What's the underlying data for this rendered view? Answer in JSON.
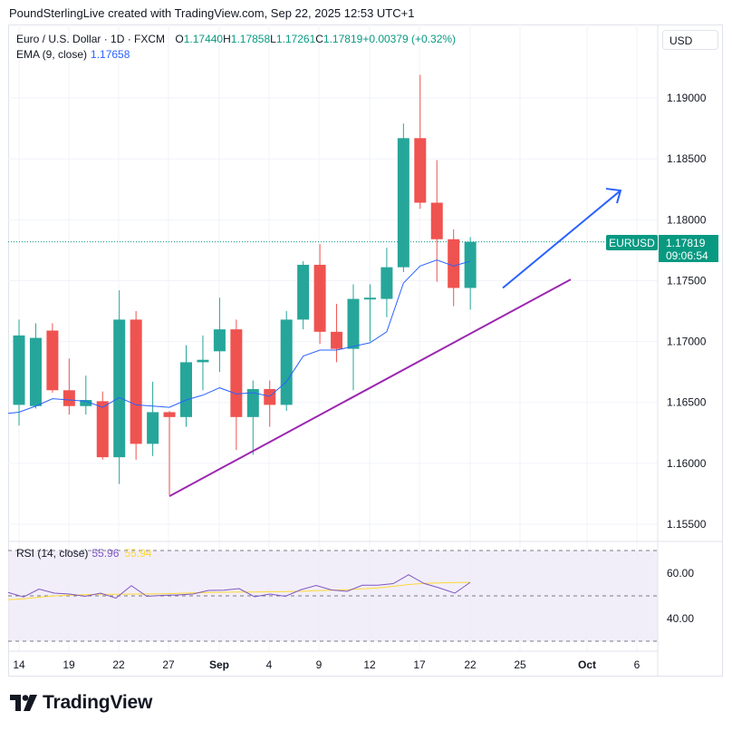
{
  "header": {
    "credit": "PoundSterlingLive created with TradingView.com, Sep 22, 2025 12:53 UTC+1"
  },
  "legend": {
    "symbol": "Euro / U.S. Dollar · 1D · FXCM",
    "o_label": "O",
    "o_value": "1.17440",
    "h_label": "H",
    "h_value": "1.17858",
    "l_label": "L",
    "l_value": "1.17261",
    "c_label": "C",
    "c_value": "1.17819",
    "change": "+0.00379 (+0.32%)",
    "ema_label": "EMA (9, close)",
    "ema_value": "1.17658",
    "rsi_label": "RSI (14, close)",
    "rsi_value": "55.96",
    "rsi_ma_value": "55.94"
  },
  "price_scale": {
    "currency": "USD",
    "ticks": [
      "1.19000",
      "1.18500",
      "1.18000",
      "1.17500",
      "1.17000",
      "1.16500",
      "1.16000",
      "1.15500"
    ],
    "last_symbol": "EURUSD",
    "last_price": "1.17819",
    "countdown": "09:06:54"
  },
  "rsi_scale": {
    "ticks": [
      "60.00",
      "40.00"
    ]
  },
  "time_axis": {
    "labels": [
      "14",
      "19",
      "22",
      "27",
      "Sep",
      "4",
      "9",
      "12",
      "17",
      "22",
      "25",
      "Oct",
      "6"
    ],
    "bold": [
      "Sep",
      "Oct"
    ]
  },
  "colors": {
    "up": "#26a69a",
    "down": "#ef5350",
    "ema": "#2962ff",
    "trendline": "#9c27b0",
    "arrow": "#2962ff",
    "rsi": "#7e57c2",
    "rsi_ma": "#fdd835",
    "rsi_band": "#ede7f6"
  },
  "chart_data": {
    "type": "candlestick",
    "title": "Euro / U.S. Dollar · 1D · FXCM",
    "ylim": [
      1.153,
      1.1945
    ],
    "candles": [
      {
        "o": 1.1648,
        "h": 1.1718,
        "l": 1.1631,
        "c": 1.1705
      },
      {
        "o": 1.1647,
        "h": 1.1715,
        "l": 1.1645,
        "c": 1.1703
      },
      {
        "o": 1.1709,
        "h": 1.1715,
        "l": 1.1658,
        "c": 1.166
      },
      {
        "o": 1.166,
        "h": 1.1686,
        "l": 1.164,
        "c": 1.1647
      },
      {
        "o": 1.1647,
        "h": 1.1672,
        "l": 1.164,
        "c": 1.1652
      },
      {
        "o": 1.1651,
        "h": 1.1659,
        "l": 1.1603,
        "c": 1.1605
      },
      {
        "o": 1.1605,
        "h": 1.1742,
        "l": 1.1583,
        "c": 1.1718
      },
      {
        "o": 1.1718,
        "h": 1.1725,
        "l": 1.1603,
        "c": 1.1616
      },
      {
        "o": 1.1616,
        "h": 1.1667,
        "l": 1.1606,
        "c": 1.1642
      },
      {
        "o": 1.1642,
        "h": 1.1643,
        "l": 1.1574,
        "c": 1.1638
      },
      {
        "o": 1.1638,
        "h": 1.1697,
        "l": 1.163,
        "c": 1.1683
      },
      {
        "o": 1.1683,
        "h": 1.1705,
        "l": 1.166,
        "c": 1.1685
      },
      {
        "o": 1.1692,
        "h": 1.1736,
        "l": 1.1675,
        "c": 1.171
      },
      {
        "o": 1.171,
        "h": 1.1718,
        "l": 1.1611,
        "c": 1.1638
      },
      {
        "o": 1.1638,
        "h": 1.1668,
        "l": 1.1607,
        "c": 1.1661
      },
      {
        "o": 1.1661,
        "h": 1.1668,
        "l": 1.163,
        "c": 1.1648
      },
      {
        "o": 1.1648,
        "h": 1.1725,
        "l": 1.1643,
        "c": 1.1718
      },
      {
        "o": 1.1718,
        "h": 1.1766,
        "l": 1.171,
        "c": 1.1763
      },
      {
        "o": 1.1763,
        "h": 1.178,
        "l": 1.1698,
        "c": 1.1708
      },
      {
        "o": 1.1708,
        "h": 1.1731,
        "l": 1.1683,
        "c": 1.1694
      },
      {
        "o": 1.1694,
        "h": 1.1747,
        "l": 1.166,
        "c": 1.1735
      },
      {
        "o": 1.1735,
        "h": 1.1747,
        "l": 1.17,
        "c": 1.1736
      },
      {
        "o": 1.1735,
        "h": 1.1777,
        "l": 1.172,
        "c": 1.1761
      },
      {
        "o": 1.1761,
        "h": 1.1879,
        "l": 1.1757,
        "c": 1.1867
      },
      {
        "o": 1.1867,
        "h": 1.1919,
        "l": 1.1809,
        "c": 1.1814
      },
      {
        "o": 1.1814,
        "h": 1.1849,
        "l": 1.1749,
        "c": 1.1784
      },
      {
        "o": 1.1784,
        "h": 1.1792,
        "l": 1.1729,
        "c": 1.1744
      },
      {
        "o": 1.1744,
        "h": 1.17858,
        "l": 1.17261,
        "c": 1.17819
      }
    ],
    "ema": [
      1.1642,
      1.1647,
      1.1653,
      1.1652,
      1.1651,
      1.1646,
      1.1654,
      1.1648,
      1.1647,
      1.1646,
      1.1652,
      1.1656,
      1.1662,
      1.1657,
      1.1658,
      1.1655,
      1.1667,
      1.1688,
      1.1693,
      1.1693,
      1.1696,
      1.1699,
      1.1708,
      1.1748,
      1.1762,
      1.1767,
      1.1762,
      1.1766
    ],
    "rsi": [
      55.96
    ],
    "rsi_ma": [
      55.94
    ],
    "rsi_levels": [
      70,
      50,
      30
    ],
    "trendline": {
      "from": {
        "x": "Aug 27",
        "y": 1.1573
      },
      "to": {
        "x": "Sep 24",
        "y": 1.1751
      }
    },
    "arrow": {
      "from": {
        "x": "Sep 23",
        "y": 1.1744
      },
      "to": {
        "x": "Oct 5",
        "y": 1.1824
      }
    }
  }
}
